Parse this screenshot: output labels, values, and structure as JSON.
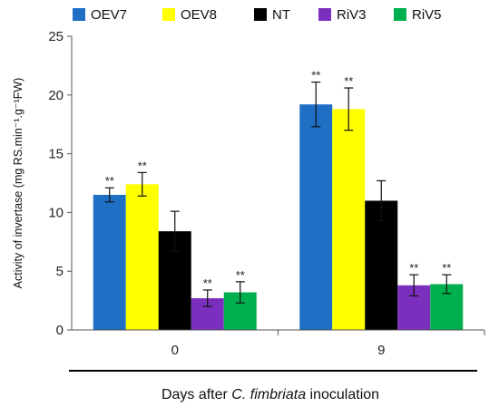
{
  "chart_data": {
    "type": "bar",
    "categories": [
      "0",
      "9"
    ],
    "series": [
      {
        "name": "OEV7",
        "color": "#1f6fc5",
        "values": [
          11.5,
          19.2
        ],
        "errors": [
          0.6,
          1.9
        ],
        "annotations": [
          "**",
          "**"
        ]
      },
      {
        "name": "OEV8",
        "color": "#ffff00",
        "values": [
          12.4,
          18.8
        ],
        "errors": [
          1.0,
          1.8
        ],
        "annotations": [
          "**",
          "**"
        ]
      },
      {
        "name": "NT",
        "color": "#000000",
        "values": [
          8.4,
          11.0
        ],
        "errors": [
          1.7,
          1.7
        ],
        "annotations": [
          "",
          ""
        ]
      },
      {
        "name": "RiV3",
        "color": "#7b2fbe",
        "values": [
          2.7,
          3.8
        ],
        "errors": [
          0.7,
          0.9
        ],
        "annotations": [
          "**",
          "**"
        ]
      },
      {
        "name": "RiV5",
        "color": "#00b04f",
        "values": [
          3.2,
          3.9
        ],
        "errors": [
          0.9,
          0.8
        ],
        "annotations": [
          "**",
          "**"
        ]
      }
    ],
    "ylim": [
      0,
      25
    ],
    "yticks": [
      "0",
      "5",
      "10",
      "15",
      "20",
      "25"
    ],
    "ylabel": "Activity of invertase (mg RS.min⁻¹.g⁻¹FW)",
    "xlabel_parts": [
      "Days after ",
      "C. fimbriata",
      " inoculation"
    ],
    "legend_position": "top",
    "grid": false
  }
}
